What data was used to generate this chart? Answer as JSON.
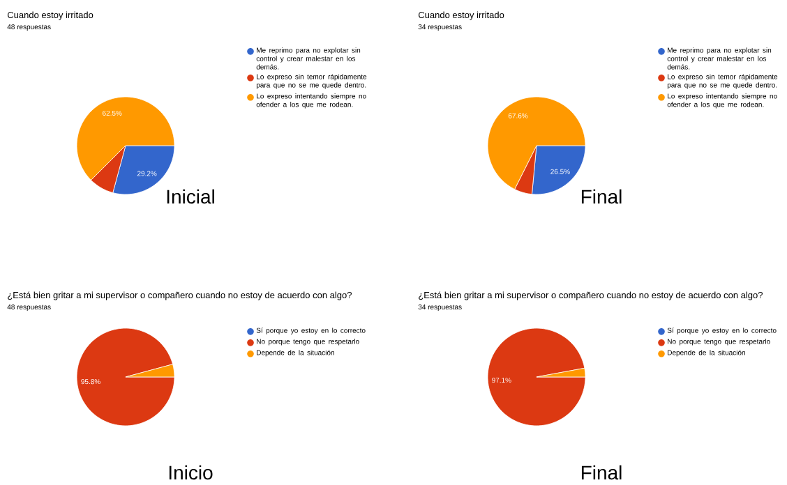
{
  "chart_data": [
    {
      "type": "pie",
      "title": "Cuando estoy irritado",
      "subtitle": "48 respuestas",
      "categories": [
        "Me reprimo para no explotar sin control y crear malestar en los demás.",
        "Lo expreso sin temor rápidamente para que no se me quede dentro.",
        "Lo expreso intentando siempre no ofender a los que me rodean."
      ],
      "values": [
        29.2,
        8.3,
        62.5
      ],
      "colors": [
        "#3366cc",
        "#dc3912",
        "#ff9900"
      ],
      "value_labels": [
        "29.2%",
        null,
        "62.5%"
      ],
      "legend": "right",
      "annotations": [
        "Inicial"
      ]
    },
    {
      "type": "pie",
      "title": "Cuando estoy irritado",
      "subtitle": "34 respuestas",
      "categories": [
        "Me reprimo para no explotar sin control y crear malestar en los demás.",
        "Lo expreso sin temor rápidamente para que no se me quede dentro.",
        "Lo expreso intentando siempre no ofender a los que me rodean."
      ],
      "values": [
        26.5,
        5.9,
        67.6
      ],
      "colors": [
        "#3366cc",
        "#dc3912",
        "#ff9900"
      ],
      "value_labels": [
        "26.5%",
        null,
        "67.6%"
      ],
      "legend": "right",
      "annotations": [
        "Final"
      ]
    },
    {
      "type": "pie",
      "title": "¿Está bien gritar a mi supervisor o compañero cuando no estoy de acuerdo con algo?",
      "subtitle": "48 respuestas",
      "categories": [
        "Sí porque yo estoy en lo correcto",
        "No porque tengo que respetarlo",
        "Depende de la situación"
      ],
      "values": [
        0,
        95.8,
        4.2
      ],
      "colors": [
        "#3366cc",
        "#dc3912",
        "#ff9900"
      ],
      "value_labels": [
        null,
        "95.8%",
        null
      ],
      "legend": "right",
      "annotations": [
        "Inicio"
      ]
    },
    {
      "type": "pie",
      "title": "¿Está bien gritar a mi supervisor o compañero cuando no estoy de acuerdo con algo?",
      "subtitle": "34 respuestas",
      "categories": [
        "Sí porque yo estoy en lo correcto",
        "No porque tengo que respetarlo",
        "Depende de la situación"
      ],
      "values": [
        0,
        97.1,
        2.9
      ],
      "colors": [
        "#3366cc",
        "#dc3912",
        "#ff9900"
      ],
      "value_labels": [
        null,
        "97.1%",
        null
      ],
      "legend": "right",
      "annotations": [
        "Final"
      ]
    }
  ]
}
